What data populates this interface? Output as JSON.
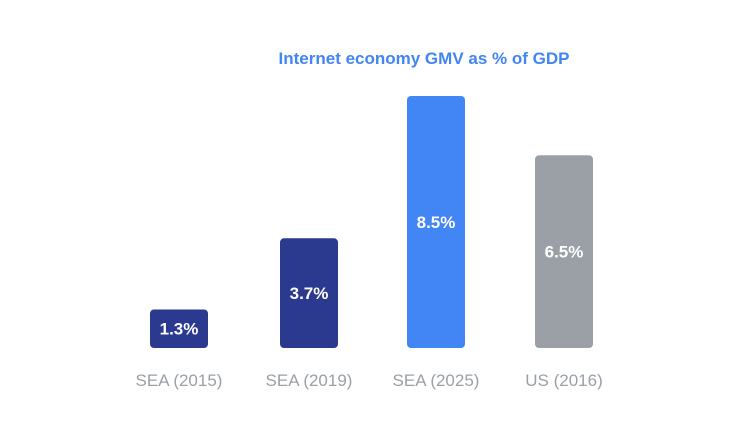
{
  "chart_data": {
    "type": "bar",
    "title": "Internet economy GMV as % of GDP",
    "xlabel": "",
    "ylabel": "",
    "categories": [
      "SEA (2015)",
      "SEA (2019)",
      "SEA (2025)",
      "US (2016)"
    ],
    "values": [
      1.3,
      3.7,
      8.5,
      6.5
    ],
    "value_labels": [
      "1.3%",
      "3.7%",
      "8.5%",
      "6.5%"
    ],
    "unit": "%",
    "ylim": [
      0,
      8.5
    ],
    "grid": false,
    "legend": "none",
    "bar_colors": [
      "#2b3a8f",
      "#2b3a8f",
      "#4285f4",
      "#9aa0a6"
    ]
  },
  "colors": {
    "title": "#4285f4",
    "tick_label": "#9aa0a6",
    "bar_label": "#ffffff",
    "background": "#ffffff"
  }
}
